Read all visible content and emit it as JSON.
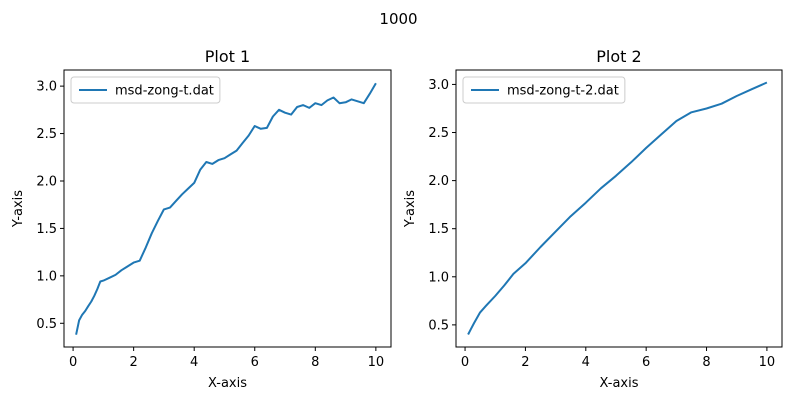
{
  "figure": {
    "suptitle": "1000"
  },
  "chart_data": [
    {
      "type": "line",
      "title": "Plot 1",
      "xlabel": "X-axis",
      "ylabel": "Y-axis",
      "xlim": [
        -0.3,
        10.5
      ],
      "ylim": [
        0.25,
        3.17
      ],
      "xticks": [
        0,
        2,
        4,
        6,
        8,
        10
      ],
      "yticks": [
        0.5,
        1.0,
        1.5,
        2.0,
        2.5,
        3.0
      ],
      "ytick_labels": [
        "0.5",
        "1.0",
        "1.5",
        "2.0",
        "2.5",
        "3.0"
      ],
      "grid": false,
      "legend": "upper-left",
      "color": "#1f77b4",
      "series": [
        {
          "name": "msd-zong-t.dat",
          "x": [
            0.1,
            0.2,
            0.3,
            0.4,
            0.5,
            0.6,
            0.7,
            0.8,
            0.9,
            1.0,
            1.2,
            1.4,
            1.6,
            1.8,
            2.0,
            2.2,
            2.4,
            2.6,
            2.8,
            3.0,
            3.2,
            3.4,
            3.6,
            3.8,
            4.0,
            4.2,
            4.4,
            4.6,
            4.8,
            5.0,
            5.2,
            5.4,
            5.6,
            5.8,
            6.0,
            6.2,
            6.4,
            6.6,
            6.8,
            7.0,
            7.2,
            7.4,
            7.6,
            7.8,
            8.0,
            8.2,
            8.4,
            8.6,
            8.8,
            9.0,
            9.2,
            9.4,
            9.6,
            9.8,
            10.0
          ],
          "y": [
            0.38,
            0.53,
            0.59,
            0.63,
            0.68,
            0.73,
            0.79,
            0.86,
            0.94,
            0.95,
            0.98,
            1.01,
            1.06,
            1.1,
            1.14,
            1.16,
            1.3,
            1.45,
            1.58,
            1.7,
            1.72,
            1.79,
            1.86,
            1.92,
            1.98,
            2.12,
            2.2,
            2.18,
            2.22,
            2.24,
            2.28,
            2.32,
            2.4,
            2.48,
            2.58,
            2.55,
            2.56,
            2.68,
            2.75,
            2.72,
            2.7,
            2.78,
            2.8,
            2.77,
            2.82,
            2.8,
            2.85,
            2.88,
            2.82,
            2.83,
            2.86,
            2.84,
            2.82,
            2.92,
            3.03
          ]
        }
      ]
    },
    {
      "type": "line",
      "title": "Plot 2",
      "xlabel": "X-axis",
      "ylabel": "Y-axis",
      "xlim": [
        -0.3,
        10.5
      ],
      "ylim": [
        0.27,
        3.15
      ],
      "xticks": [
        0,
        2,
        4,
        6,
        8,
        10
      ],
      "yticks": [
        0.5,
        1.0,
        1.5,
        2.0,
        2.5,
        3.0
      ],
      "ytick_labels": [
        "0.5",
        "1.0",
        "1.5",
        "2.0",
        "2.5",
        "3.0"
      ],
      "grid": false,
      "legend": "upper-left",
      "color": "#1f77b4",
      "series": [
        {
          "name": "msd-zong-t-2.dat",
          "x": [
            0.1,
            0.2,
            0.3,
            0.5,
            0.7,
            1.0,
            1.3,
            1.6,
            2.0,
            2.5,
            3.0,
            3.5,
            4.0,
            4.5,
            5.0,
            5.5,
            6.0,
            6.5,
            7.0,
            7.5,
            8.0,
            8.5,
            9.0,
            9.5,
            10.0
          ],
          "y": [
            0.4,
            0.46,
            0.52,
            0.63,
            0.7,
            0.8,
            0.91,
            1.03,
            1.14,
            1.31,
            1.47,
            1.63,
            1.77,
            1.92,
            2.05,
            2.19,
            2.34,
            2.48,
            2.62,
            2.71,
            2.75,
            2.8,
            2.88,
            2.95,
            3.02
          ]
        }
      ]
    }
  ]
}
